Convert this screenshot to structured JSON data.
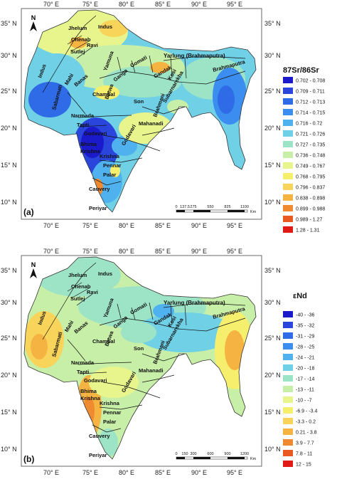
{
  "panels": [
    {
      "letter": "(a)",
      "legend_title": "87Sr/86Sr",
      "legend": [
        {
          "label": "0.702 - 0.708",
          "color": "#1a1acb"
        },
        {
          "label": "0.709 - 0.711",
          "color": "#2a45dc"
        },
        {
          "label": "0.712 - 0.713",
          "color": "#2f6be6"
        },
        {
          "label": "0.714 - 0.715",
          "color": "#3b8ef0"
        },
        {
          "label": "0.716 - 0.72",
          "color": "#4fb1ee"
        },
        {
          "label": "0.721 - 0.726",
          "color": "#6fd0e6"
        },
        {
          "label": "0.727 - 0.735",
          "color": "#9de3c6"
        },
        {
          "label": "0.736 - 0.748",
          "color": "#c8efa8"
        },
        {
          "label": "0.749 - 0.767",
          "color": "#e7f58c"
        },
        {
          "label": "0.768 - 0.795",
          "color": "#f6ef6e"
        },
        {
          "label": "0.796 - 0.837",
          "color": "#f8d45a"
        },
        {
          "label": "0.838 - 0.898",
          "color": "#f5b342"
        },
        {
          "label": "0.899 - 0.988",
          "color": "#f08a30"
        },
        {
          "label": "0.989 - 1.27",
          "color": "#e85a22"
        },
        {
          "label": "1.28 - 1.31",
          "color": "#e01a14"
        }
      ],
      "scale_ticks": [
        "0",
        "137.5",
        "275",
        "550",
        "825",
        "1100"
      ],
      "scale_unit": "Km"
    },
    {
      "letter": "(b)",
      "legend_title": "εNd",
      "legend": [
        {
          "label": "-40 - -36",
          "color": "#1a1acb"
        },
        {
          "label": "-35 - -32",
          "color": "#2a45dc"
        },
        {
          "label": "-31 - -29",
          "color": "#2f6be6"
        },
        {
          "label": "-28 - -25",
          "color": "#3b8ef0"
        },
        {
          "label": "-24 - -21",
          "color": "#4fb1ee"
        },
        {
          "label": "-20 - -18",
          "color": "#6fd0e6"
        },
        {
          "label": "-17 - -14",
          "color": "#9de3c6"
        },
        {
          "label": "-13 - -11",
          "color": "#c8efa8"
        },
        {
          "label": "-10 - -7",
          "color": "#e7f58c"
        },
        {
          "label": "-6.9 - -3.4",
          "color": "#f6ef6e"
        },
        {
          "label": "-3.3 - 0.2",
          "color": "#f8d45a"
        },
        {
          "label": "0.21 - 3.8",
          "color": "#f5b342"
        },
        {
          "label": "3.9 - 7.7",
          "color": "#f08a30"
        },
        {
          "label": "7.8 - 11",
          "color": "#e85a22"
        },
        {
          "label": "12 - 15",
          "color": "#e01a14"
        }
      ],
      "scale_ticks": [
        "0",
        "150",
        "300",
        "600",
        "900",
        "1200"
      ],
      "scale_unit": "Km"
    }
  ],
  "axes": {
    "lon_labels": [
      "70° E",
      "75° E",
      "80° E",
      "85° E",
      "90° E",
      "95° E"
    ],
    "lat_labels": [
      "35° N",
      "30° N",
      "25° N",
      "20° N",
      "15° N",
      "10° N"
    ]
  },
  "north_label": "N",
  "rivers": {
    "jhelum": "Jhelum",
    "indus_upper": "Indus",
    "chenab": "Chenab",
    "ravi": "Ravi",
    "sutlej": "Sutlej",
    "indus": "Indus",
    "yamuna": "Yamuna",
    "ganga": "Ganga",
    "gomati": "Gomati",
    "gandak": "Gandak",
    "kosi": "Kosi",
    "yarlung": "Yarlung (Brahmaputra)",
    "brahmaputra": "Brahmaputra",
    "mahi": "Mahi",
    "banas": "Banas",
    "chambal": "Chambal",
    "betwa": "Betwa",
    "sabarmati": "Sabarmati",
    "son": "Son",
    "subarnarekha": "Subarnarekha",
    "brahmani": "Brahmani",
    "narmada": "Narmada",
    "tapti": "Tapti",
    "mahanadi": "Mahanadi",
    "godavari": "Godavari",
    "bhima": "Bhima",
    "krishna": "Krishna",
    "penner": "Pennar",
    "palar": "Palar",
    "cauvery": "Cauvery",
    "periyar": "Periyar",
    "krishna2": "Krishna"
  }
}
